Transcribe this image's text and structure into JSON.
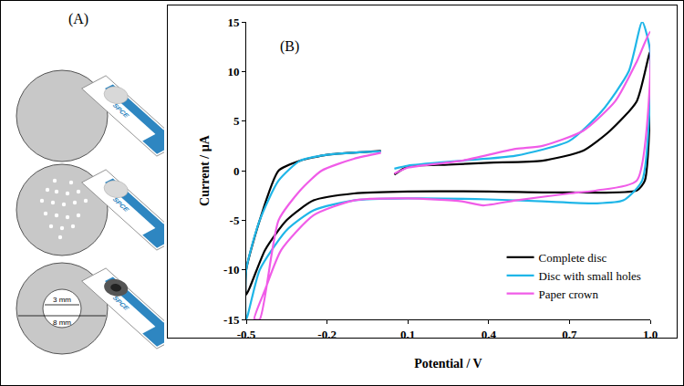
{
  "diagram": {
    "label": "(A)",
    "items": [
      {
        "shape": "complete disc",
        "electrode_label": "SPCE"
      },
      {
        "shape": "disc with small holes",
        "electrode_label": "SPCE"
      },
      {
        "shape": "paper crown",
        "electrode_label": "SPCE",
        "dimension_labels": [
          "3 mm",
          "8 mm"
        ]
      }
    ]
  },
  "chart_data": {
    "type": "line",
    "annotations": [
      "(B)"
    ],
    "x_label": "Potential / V",
    "y_label": "Current / µA",
    "xlim": [
      -0.5,
      1.0
    ],
    "xticks": [
      -0.5,
      -0.2,
      0.1,
      0.4,
      0.7,
      {
        "value": 1.0,
        "label": "1.0"
      }
    ],
    "ylim": [
      -15,
      15
    ],
    "yticks": [
      -15,
      -10,
      -5,
      0,
      5,
      10,
      15
    ],
    "grid": false,
    "legend": "lower right",
    "series": [
      {
        "name": "Complete disc",
        "color": "#000000",
        "x": [
          0.05,
          0.1,
          0.25,
          0.4,
          0.6,
          0.75,
          0.85,
          0.95,
          1.0,
          0.98,
          0.95,
          0.7,
          0.4,
          0.1,
          -0.1,
          -0.25,
          -0.35,
          -0.43,
          -0.5,
          -0.5,
          -0.45,
          -0.38,
          -0.3,
          -0.2,
          -0.05,
          0.0
        ],
        "values": [
          -0.4,
          0.4,
          0.6,
          0.8,
          1.0,
          2.0,
          4.0,
          7.0,
          12.0,
          -1.0,
          -2.0,
          -2.2,
          -2.1,
          -2.1,
          -2.3,
          -3.0,
          -5.0,
          -8.0,
          -12.5,
          -10.0,
          -5.0,
          0.0,
          1.0,
          1.6,
          1.9,
          2.0
        ]
      },
      {
        "name": "Disc with small holes",
        "color": "#1fb6e8",
        "x": [
          0.05,
          0.1,
          0.3,
          0.5,
          0.7,
          0.82,
          0.92,
          0.97,
          1.0,
          0.97,
          0.9,
          0.8,
          0.6,
          0.4,
          0.1,
          -0.1,
          -0.25,
          -0.35,
          -0.45,
          -0.5,
          -0.5,
          -0.45,
          -0.38,
          -0.3,
          -0.2,
          -0.05,
          0.0
        ],
        "values": [
          0.2,
          0.5,
          1.0,
          1.5,
          3.0,
          6.0,
          10.0,
          15.0,
          12.0,
          -1.0,
          -3.0,
          -3.3,
          -3.1,
          -2.9,
          -2.8,
          -3.0,
          -4.0,
          -6.0,
          -10.0,
          -15.0,
          -10.0,
          -5.0,
          -1.0,
          1.0,
          1.6,
          1.9,
          1.95
        ]
      },
      {
        "name": "Paper crown",
        "color": "#f05ce8",
        "x": [
          0.05,
          0.1,
          0.3,
          0.5,
          0.6,
          0.75,
          0.87,
          0.95,
          1.0,
          0.95,
          0.8,
          0.7,
          0.5,
          0.38,
          0.3,
          0.1,
          -0.1,
          -0.25,
          -0.37,
          -0.43,
          -0.47,
          -0.45,
          -0.38,
          -0.3,
          -0.22,
          -0.1,
          0.0
        ],
        "values": [
          -0.3,
          0.3,
          1.0,
          2.2,
          2.5,
          4.0,
          7.0,
          11.0,
          14.0,
          -1.0,
          -2.0,
          -2.3,
          -3.0,
          -3.5,
          -3.1,
          -2.8,
          -3.0,
          -4.5,
          -8.0,
          -12.0,
          -15.0,
          -15.0,
          -5.0,
          -2.0,
          0.0,
          1.2,
          1.8
        ]
      }
    ]
  }
}
